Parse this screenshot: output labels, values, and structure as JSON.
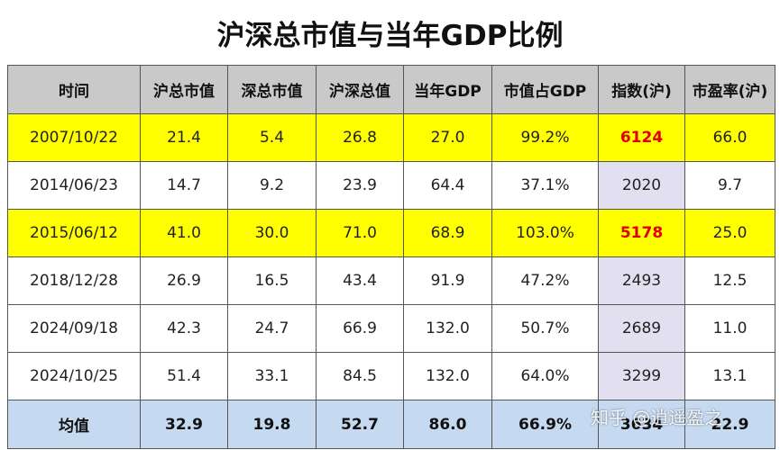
{
  "title": "沪深总市值与当年GDP比例",
  "columns": [
    "时间",
    "沪总市值",
    "深总市值",
    "沪深总值",
    "当年GDP",
    "市值占GDP",
    "指数(沪)",
    "市盈率(沪)"
  ],
  "rows": [
    [
      "2007/10/22",
      "21.4",
      "5.4",
      "26.8",
      "27.0",
      "99.2%",
      "6124",
      "66.0"
    ],
    [
      "2014/06/23",
      "14.7",
      "9.2",
      "23.9",
      "64.4",
      "37.1%",
      "2020",
      "9.7"
    ],
    [
      "2015/06/12",
      "41.0",
      "30.0",
      "71.0",
      "68.9",
      "103.0%",
      "5178",
      "25.0"
    ],
    [
      "2018/12/28",
      "26.9",
      "16.5",
      "43.4",
      "91.9",
      "47.2%",
      "2493",
      "12.5"
    ],
    [
      "2024/09/18",
      "42.3",
      "24.7",
      "66.9",
      "132.0",
      "50.7%",
      "2689",
      "11.0"
    ],
    [
      "2024/10/25",
      "51.4",
      "33.1",
      "84.5",
      "132.0",
      "64.0%",
      "3299",
      "13.1"
    ]
  ],
  "average": [
    "均值",
    "32.9",
    "19.8",
    "52.7",
    "86.0",
    "66.9%",
    "3634",
    "22.9"
  ],
  "watermark": "知乎 @逍遥盈之",
  "colors": {
    "header_bg": "#c9c9c9",
    "highlight_row": "#ffff00",
    "highlight_index_text": "#e00000",
    "index_column_bg": "#e2dff0",
    "average_row_bg": "#c5d9f1"
  }
}
